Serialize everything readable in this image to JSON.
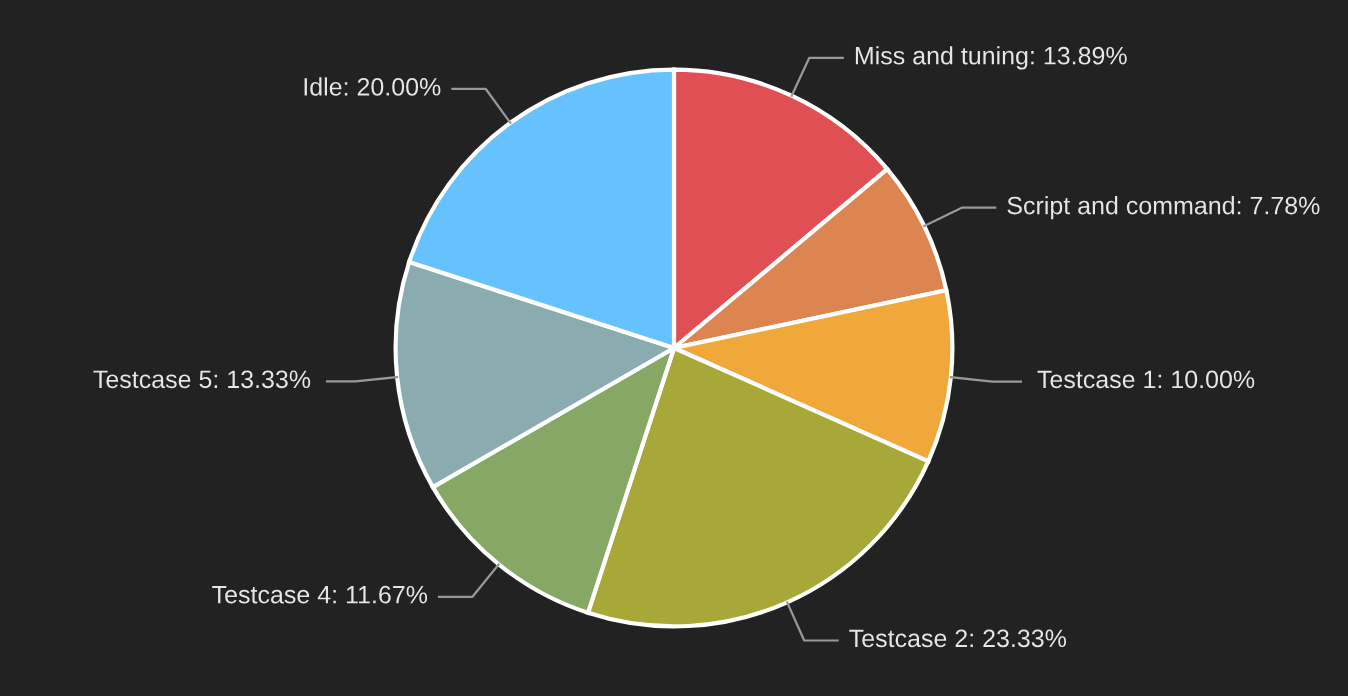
{
  "chart_data": {
    "type": "pie",
    "categories": [
      "Miss and tuning",
      "Script and command",
      "Testcase 1",
      "Testcase 2",
      "Testcase 4",
      "Testcase 5",
      "Idle"
    ],
    "values": [
      13.89,
      7.78,
      10.0,
      23.33,
      11.67,
      13.33,
      20.0
    ],
    "value_labels": [
      "13.89%",
      "7.78%",
      "10.00%",
      "23.33%",
      "11.67%",
      "13.33%",
      "20.00%"
    ],
    "colors": [
      "#e04f54",
      "#dd8550",
      "#f0a83a",
      "#a8a838",
      "#87a864",
      "#8aabb0",
      "#66c2ff"
    ]
  }
}
